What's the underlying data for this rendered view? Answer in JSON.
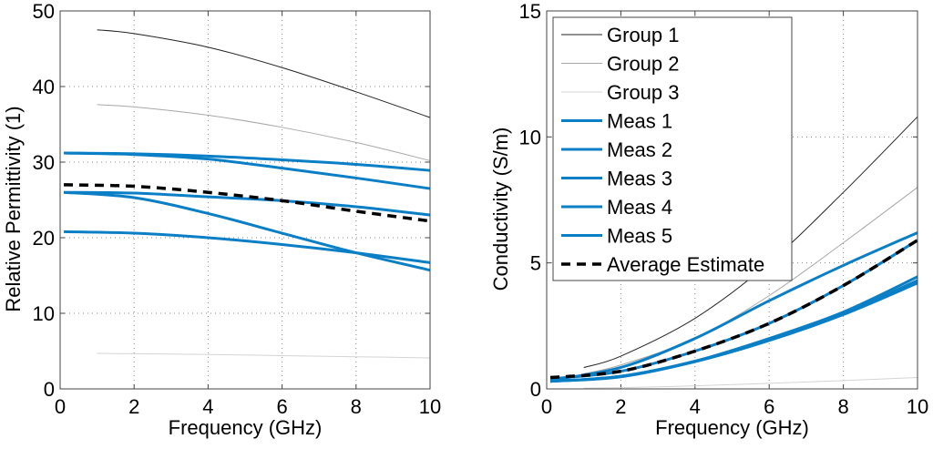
{
  "chart_data": [
    {
      "type": "line",
      "xlabel": "Frequency (GHz)",
      "ylabel": "Relative Permittivity (1)",
      "xlim": [
        0,
        10
      ],
      "ylim": [
        0,
        50
      ],
      "xticks": [
        "0",
        "2",
        "4",
        "6",
        "8",
        "10"
      ],
      "yticks": [
        "0",
        "10",
        "20",
        "30",
        "40",
        "50"
      ],
      "grid": true,
      "series": [
        {
          "key": "g1",
          "x": [
            1,
            2,
            4,
            6,
            8,
            10
          ],
          "y": [
            47.5,
            47.0,
            45.2,
            42.5,
            39.3,
            35.9
          ]
        },
        {
          "key": "g2",
          "x": [
            1,
            2,
            4,
            6,
            8,
            10
          ],
          "y": [
            37.6,
            37.3,
            36.2,
            34.6,
            32.6,
            30.2
          ]
        },
        {
          "key": "g3",
          "x": [
            1,
            2,
            4,
            6,
            8,
            10
          ],
          "y": [
            4.7,
            4.65,
            4.55,
            4.4,
            4.25,
            4.1
          ]
        },
        {
          "key": "m1",
          "x": [
            0.1,
            2,
            4,
            6,
            8,
            10
          ],
          "y": [
            31.2,
            31.1,
            30.8,
            30.3,
            29.7,
            28.9
          ]
        },
        {
          "key": "m2",
          "x": [
            0.1,
            2,
            4,
            6,
            8,
            10
          ],
          "y": [
            31.2,
            31.0,
            30.4,
            29.2,
            27.9,
            26.5
          ]
        },
        {
          "key": "m3",
          "x": [
            0.1,
            2,
            4,
            6,
            8,
            10
          ],
          "y": [
            26.0,
            25.9,
            25.4,
            24.9,
            24.1,
            23.0
          ]
        },
        {
          "key": "m4",
          "x": [
            0.1,
            2,
            4,
            6,
            8,
            10
          ],
          "y": [
            26.0,
            25.3,
            23.2,
            20.6,
            18.0,
            15.7
          ]
        },
        {
          "key": "m5",
          "x": [
            0.1,
            2,
            4,
            6,
            8,
            10
          ],
          "y": [
            20.8,
            20.6,
            20.0,
            19.1,
            18.0,
            16.7
          ]
        },
        {
          "key": "avg",
          "x": [
            0.1,
            2,
            4,
            6,
            8,
            10
          ],
          "y": [
            27.0,
            26.8,
            26.0,
            24.9,
            23.5,
            22.2
          ]
        }
      ]
    },
    {
      "type": "line",
      "xlabel": "Frequency (GHz)",
      "ylabel": "Conductivity (S/m)",
      "xlim": [
        0,
        10
      ],
      "ylim": [
        0,
        15
      ],
      "xticks": [
        "0",
        "2",
        "4",
        "6",
        "8",
        "10"
      ],
      "yticks": [
        "0",
        "5",
        "10",
        "15"
      ],
      "grid": true,
      "legend_position": "top-left",
      "series": [
        {
          "key": "g1",
          "name": "Group 1",
          "x": [
            1,
            2,
            4,
            6,
            8,
            10
          ],
          "y": [
            0.85,
            1.3,
            2.8,
            5.0,
            7.8,
            10.8
          ]
        },
        {
          "key": "g2",
          "name": "Group 2",
          "x": [
            1,
            2,
            4,
            6,
            8,
            10
          ],
          "y": [
            0.6,
            0.95,
            2.0,
            3.7,
            5.8,
            8.0
          ]
        },
        {
          "key": "g3",
          "name": "Group 3",
          "x": [
            1,
            2,
            4,
            6,
            8,
            10
          ],
          "y": [
            0.03,
            0.05,
            0.12,
            0.22,
            0.33,
            0.45
          ]
        },
        {
          "key": "m1",
          "name": "Meas 1",
          "x": [
            0.1,
            2,
            4,
            6,
            8,
            10
          ],
          "y": [
            0.35,
            0.85,
            2.0,
            3.5,
            4.9,
            6.2
          ]
        },
        {
          "key": "m2",
          "name": "Meas 2",
          "x": [
            0.1,
            2,
            4,
            6,
            8,
            10
          ],
          "y": [
            0.4,
            0.7,
            1.5,
            2.6,
            4.1,
            5.9
          ]
        },
        {
          "key": "m3",
          "name": "Meas 3",
          "x": [
            0.1,
            2,
            4,
            6,
            8,
            10
          ],
          "y": [
            0.3,
            0.5,
            1.1,
            2.0,
            3.05,
            4.45
          ]
        },
        {
          "key": "m4",
          "name": "Meas 4",
          "x": [
            0.1,
            2,
            4,
            6,
            8,
            10
          ],
          "y": [
            0.3,
            0.5,
            1.1,
            1.95,
            3.0,
            4.3
          ]
        },
        {
          "key": "m5",
          "name": "Meas 5",
          "x": [
            0.1,
            2,
            4,
            6,
            8,
            10
          ],
          "y": [
            0.3,
            0.48,
            1.08,
            1.92,
            2.95,
            4.2
          ]
        },
        {
          "key": "avg",
          "name": "Average Estimate",
          "x": [
            0.1,
            2,
            4,
            6,
            8,
            10
          ],
          "y": [
            0.45,
            0.7,
            1.5,
            2.6,
            4.1,
            5.9
          ]
        }
      ]
    }
  ],
  "styles": {
    "g1": {
      "color": "#222222",
      "width": 1,
      "dash": ""
    },
    "g2": {
      "color": "#a8a8a8",
      "width": 1,
      "dash": ""
    },
    "g3": {
      "color": "#d4d4d4",
      "width": 1,
      "dash": ""
    },
    "m1": {
      "color": "#0a7fc6",
      "width": 3,
      "dash": ""
    },
    "m2": {
      "color": "#0a7fc6",
      "width": 3,
      "dash": ""
    },
    "m3": {
      "color": "#0a7fc6",
      "width": 3,
      "dash": ""
    },
    "m4": {
      "color": "#0a7fc6",
      "width": 3,
      "dash": ""
    },
    "m5": {
      "color": "#0a7fc6",
      "width": 3,
      "dash": ""
    },
    "avg": {
      "color": "#000000",
      "width": 3.5,
      "dash": "10,7"
    }
  }
}
